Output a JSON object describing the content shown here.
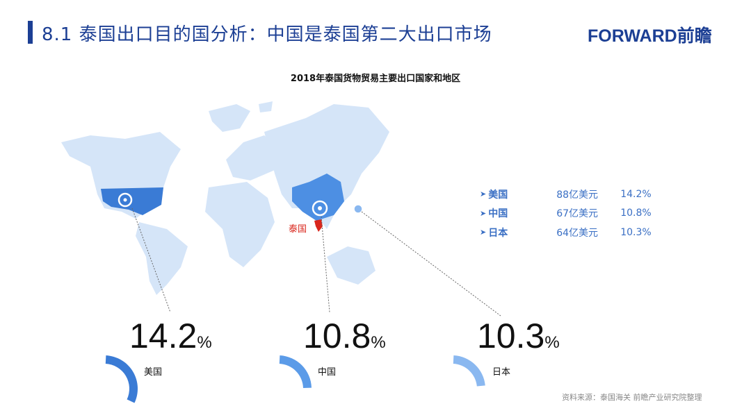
{
  "header": {
    "title": "8.1 泰国出口目的国分析：中国是泰国第二大出口市场",
    "logo": "FORWARD前瞻"
  },
  "chart_title": "2018年泰国货物贸易主要出口国家和地区",
  "map": {
    "origin_label": "泰国",
    "highlight_colors": {
      "usa": "#3a7bd5",
      "china": "#4d8fe3",
      "land": "#d5e5f8",
      "thailand": "#d9261c"
    }
  },
  "legend": [
    {
      "country": "美国",
      "value": "88亿美元",
      "share": "14.2%"
    },
    {
      "country": "中国",
      "value": "67亿美元",
      "share": "10.8%"
    },
    {
      "country": "日本",
      "value": "64亿美元",
      "share": "10.3%"
    }
  ],
  "stats": [
    {
      "number": "14.2",
      "unit": "%",
      "country": "美国",
      "share": 14.2,
      "color": "#3a7bd5"
    },
    {
      "number": "10.8",
      "unit": "%",
      "country": "中国",
      "share": 10.8,
      "color": "#5b9be8"
    },
    {
      "number": "10.3",
      "unit": "%",
      "country": "日本",
      "share": 10.3,
      "color": "#8ab8f0"
    }
  ],
  "source": "资料来源：泰国海关  前瞻产业研究院整理",
  "accent_color": "#1c3f94"
}
